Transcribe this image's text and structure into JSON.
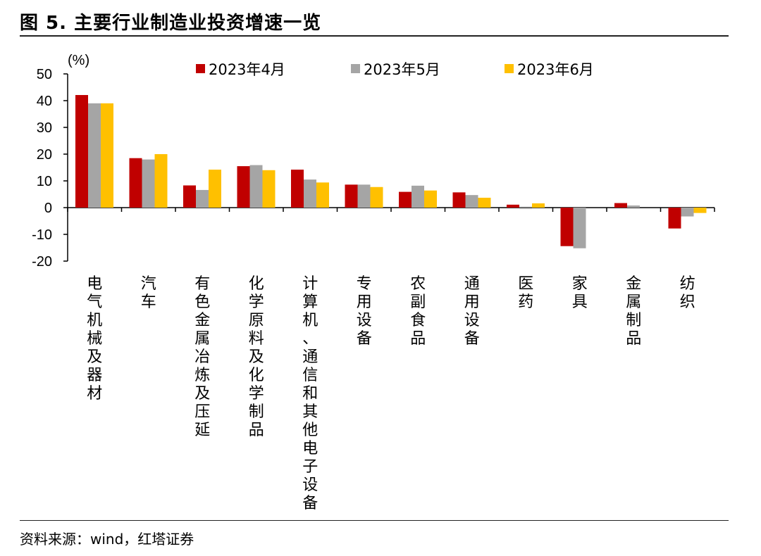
{
  "header": {
    "title": "图 5. 主要行业制造业投资增速一览"
  },
  "footer": {
    "source": "资料来源：wind，红塔证券"
  },
  "chart_data": {
    "type": "bar",
    "unit_label": "(%)",
    "ylim": [
      -20,
      50
    ],
    "yticks": [
      50,
      40,
      30,
      20,
      10,
      0,
      -10,
      -20
    ],
    "legend_position": "top",
    "categories": [
      "电气机械及器材",
      "汽车",
      "有色金属冶炼及压延",
      "化学原料及化学制品",
      "计算机、通信和其他电子设备",
      "专用设备",
      "农副食品",
      "通用设备",
      "医药",
      "家具",
      "金属制品",
      "纺织"
    ],
    "series": [
      {
        "name": "2023年4月",
        "color": "#C00000",
        "values": [
          42.1,
          18.5,
          8.3,
          15.5,
          14.2,
          8.6,
          5.9,
          5.7,
          1.1,
          -14.4,
          1.7,
          -7.8
        ]
      },
      {
        "name": "2023年5月",
        "color": "#A5A5A5",
        "values": [
          39.0,
          18.0,
          6.6,
          15.9,
          10.5,
          8.6,
          8.2,
          4.7,
          -0.5,
          -15.2,
          0.8,
          -3.3
        ]
      },
      {
        "name": "2023年6月",
        "color": "#FFC000",
        "values": [
          39.0,
          20.0,
          14.2,
          14.0,
          9.4,
          7.7,
          6.4,
          3.7,
          1.6,
          0.0,
          0.0,
          -2.0
        ]
      }
    ]
  }
}
